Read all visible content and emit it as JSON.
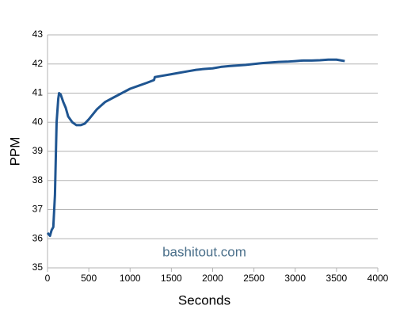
{
  "chart_data": {
    "type": "line",
    "x_label": "Seconds",
    "y_label": "PPM",
    "annotation": "bashitout.com",
    "x": [
      0,
      30,
      50,
      70,
      90,
      110,
      130,
      140,
      160,
      190,
      220,
      250,
      300,
      350,
      400,
      450,
      500,
      600,
      700,
      800,
      900,
      1000,
      1100,
      1200,
      1290,
      1300,
      1400,
      1500,
      1600,
      1700,
      1800,
      1900,
      2000,
      2100,
      2200,
      2300,
      2400,
      2500,
      2600,
      2700,
      2800,
      2900,
      3000,
      3100,
      3200,
      3300,
      3400,
      3500,
      3600
    ],
    "series": [
      {
        "name": "PPM",
        "color": "#1f5591",
        "values": [
          36.2,
          36.1,
          36.3,
          36.4,
          37.5,
          40.0,
          40.8,
          41.0,
          40.95,
          40.7,
          40.5,
          40.2,
          40.0,
          39.9,
          39.9,
          39.95,
          40.1,
          40.45,
          40.7,
          40.85,
          41.0,
          41.15,
          41.25,
          41.35,
          41.45,
          41.55,
          41.6,
          41.65,
          41.7,
          41.75,
          41.8,
          41.83,
          41.85,
          41.9,
          41.93,
          41.95,
          41.97,
          42.0,
          42.03,
          42.05,
          42.07,
          42.08,
          42.1,
          42.12,
          42.12,
          42.13,
          42.15,
          42.15,
          42.1
        ]
      }
    ],
    "xlim": [
      0,
      4000
    ],
    "xticks": [
      0,
      500,
      1000,
      1500,
      2000,
      2500,
      3000,
      3500,
      4000
    ],
    "ylim": [
      35,
      43
    ],
    "yticks": [
      35,
      36,
      37,
      38,
      39,
      40,
      41,
      42,
      43
    ],
    "grid": true
  }
}
